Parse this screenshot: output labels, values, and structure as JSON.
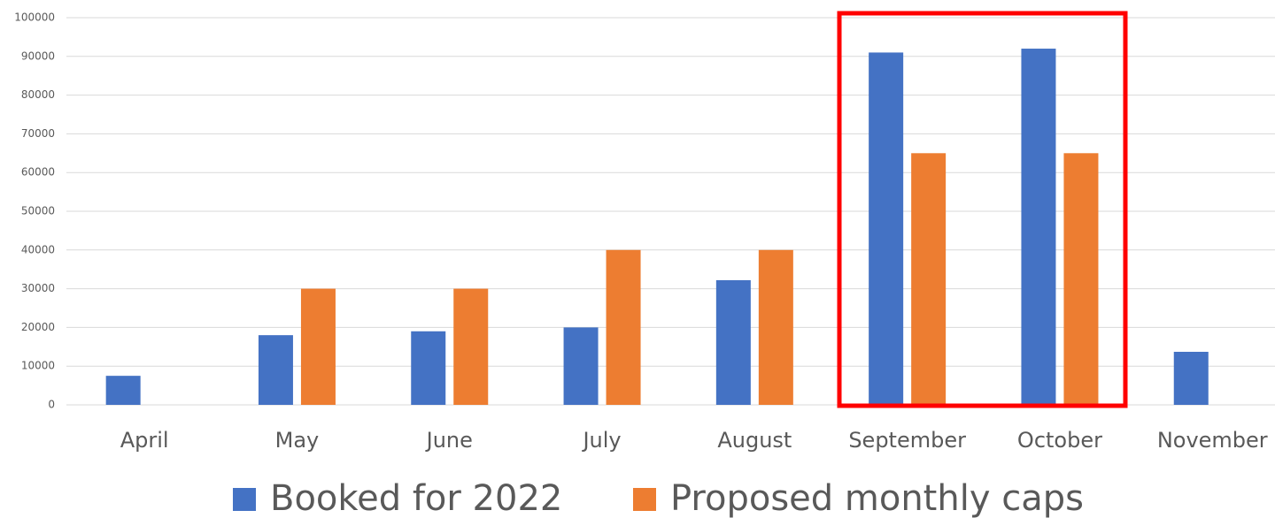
{
  "chart_data": {
    "type": "bar",
    "categories": [
      "April",
      "May",
      "June",
      "July",
      "August",
      "September",
      "October",
      "November"
    ],
    "series": [
      {
        "name": "Booked for 2022",
        "color": "#4472c4",
        "values": [
          7500,
          18000,
          19000,
          20000,
          32200,
          91000,
          92000,
          13700
        ]
      },
      {
        "name": "Proposed monthly caps",
        "color": "#ed7d31",
        "values": [
          null,
          30000,
          30000,
          40000,
          40000,
          65000,
          65000,
          null
        ]
      }
    ],
    "ylim": [
      0,
      100000
    ],
    "yticks": [
      0,
      10000,
      20000,
      30000,
      40000,
      50000,
      60000,
      70000,
      80000,
      90000,
      100000
    ],
    "grid": true,
    "legend": "bottom"
  }
}
